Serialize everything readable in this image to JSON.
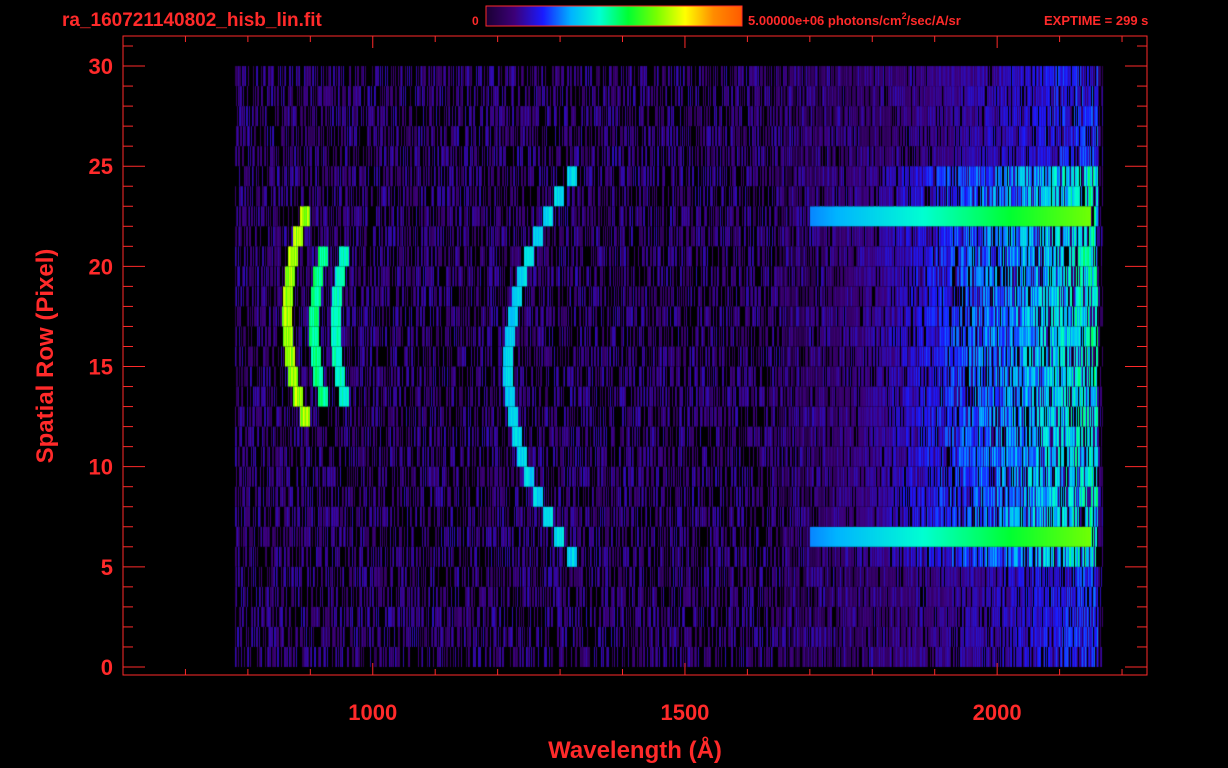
{
  "header": {
    "filename": "ra_160721140802_hisb_lin.fit",
    "colorbar_min_label": "0",
    "colorbar_max_value": "5.00000e+06",
    "colorbar_unit_prefix": " photons/cm",
    "colorbar_unit_exponent": "2",
    "colorbar_unit_suffix": "/sec/A/sr",
    "exptime_label": "EXPTIME = 299 s"
  },
  "colors": {
    "text": "#ff2a2a",
    "axes": "#ff2a2a",
    "background": "#000000",
    "colormap": [
      "#1a0033",
      "#3c0078",
      "#1a1aff",
      "#00b4ff",
      "#00ffd2",
      "#00ff32",
      "#78ff00",
      "#ffff00",
      "#ff8c00",
      "#ff5a00"
    ]
  },
  "chart_data": {
    "type": "heatmap",
    "xlabel": "Wavelength (Å)",
    "ylabel": "Spatial Row (Pixel)",
    "x_ticks": [
      1000,
      1500,
      2000
    ],
    "y_ticks": [
      0,
      5,
      10,
      15,
      20,
      25,
      30
    ],
    "xlim": [
      600,
      2240
    ],
    "ylim": [
      -0.4,
      31.5
    ],
    "colorbar": {
      "min": 0,
      "max": 5000000
    },
    "data_extent": {
      "x_range": [
        780,
        2170
      ],
      "y_range": [
        0,
        30
      ]
    },
    "features": [
      {
        "feature": "curved emission line",
        "x_center": 862,
        "y_range": [
          12,
          22
        ],
        "level": 0.78
      },
      {
        "feature": "curved emission line",
        "x_center": 905,
        "y_range": [
          13,
          20
        ],
        "level": 0.55
      },
      {
        "feature": "curved emission line",
        "x_center": 940,
        "y_range": [
          13,
          20
        ],
        "level": 0.5
      },
      {
        "feature": "emission line",
        "x_center": 1216,
        "y_range": [
          5,
          24
        ],
        "level": 0.42
      },
      {
        "feature": "bright spatial band",
        "y_center": 22.5,
        "x_range": [
          1700,
          2150
        ],
        "level": 0.6
      },
      {
        "feature": "bright spatial band",
        "y_center": 6.5,
        "x_range": [
          1700,
          2150
        ],
        "level": 0.6
      },
      {
        "feature": "continuum rise",
        "x_range": [
          1650,
          2160
        ],
        "level": 0.55
      }
    ]
  }
}
